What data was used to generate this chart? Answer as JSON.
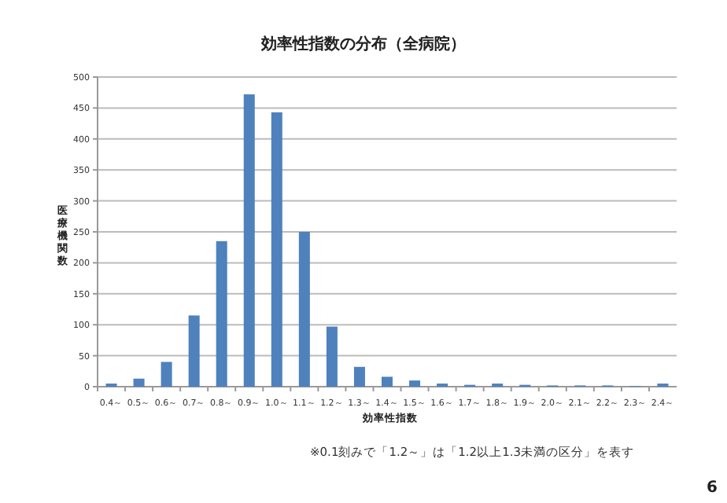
{
  "chart_data": {
    "type": "bar",
    "title": "効率性指数の分布（全病院）",
    "xlabel": "効率性指数",
    "ylabel": "医療機関数",
    "categories": [
      "0.4～",
      "0.5～",
      "0.6～",
      "0.7～",
      "0.8～",
      "0.9～",
      "1.0～",
      "1.1～",
      "1.2～",
      "1.3～",
      "1.4～",
      "1.5～",
      "1.6～",
      "1.7～",
      "1.8～",
      "1.9～",
      "2.0～",
      "2.1～",
      "2.2～",
      "2.3～",
      "2.4～"
    ],
    "values": [
      5,
      13,
      40,
      115,
      235,
      472,
      443,
      250,
      97,
      32,
      16,
      10,
      5,
      3,
      5,
      3,
      2,
      2,
      2,
      1,
      5
    ],
    "color": "#4f81bd",
    "ylim": [
      0,
      500
    ],
    "yticks": [
      0,
      50,
      100,
      150,
      200,
      250,
      300,
      350,
      400,
      450,
      500
    ],
    "grid": "y",
    "annotations": [
      "※0.1刻みで「1.2～」は「1.2以上1.3未満の区分」を表す",
      "6"
    ]
  }
}
